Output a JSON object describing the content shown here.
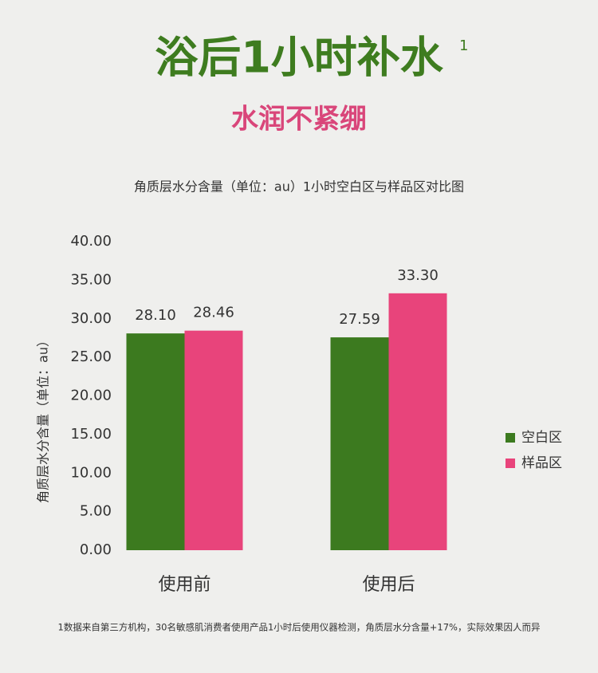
{
  "chart_data": {
    "type": "bar",
    "title": "浴后1小时补水",
    "title_note": "1",
    "subtitle": "水润不紧绷",
    "chart_title": "角质层水分含量（单位：au）1小时空白区与样品区对比图",
    "ylabel": "角质层水分含量（单位：au）",
    "categories": [
      "使用前",
      "使用后"
    ],
    "series": [
      {
        "name": "空白区",
        "color": "#3c7a1f",
        "values": [
          28.1,
          27.59
        ],
        "value_labels": [
          "28.10",
          "27.59"
        ]
      },
      {
        "name": "样品区",
        "color": "#e8447b",
        "values": [
          28.46,
          33.3
        ],
        "value_labels": [
          "28.46",
          "33.30"
        ]
      }
    ],
    "ylim": [
      0,
      40
    ],
    "yticks": [
      {
        "value": 0,
        "label": "0.00"
      },
      {
        "value": 5,
        "label": "5.00"
      },
      {
        "value": 10,
        "label": "10.00"
      },
      {
        "value": 15,
        "label": "15.00"
      },
      {
        "value": 20,
        "label": "20.00"
      },
      {
        "value": 25,
        "label": "25.00"
      },
      {
        "value": 30,
        "label": "30.00"
      },
      {
        "value": 35,
        "label": "35.00"
      },
      {
        "value": 40,
        "label": "40.00"
      }
    ],
    "grid": false,
    "legend": "right",
    "footnote": "1数据来自第三方机构，30名敏感肌消费者使用产品1小时后使用仪器检测，角质层水分含量+17%，实际效果因人而异"
  }
}
